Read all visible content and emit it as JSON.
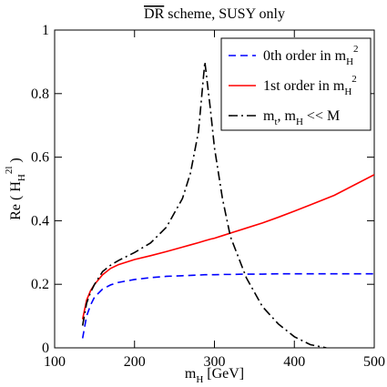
{
  "chart_data": {
    "type": "line",
    "title": [
      {
        "text": "DR",
        "overline": true
      },
      {
        "text": " scheme,  SUSY only"
      }
    ],
    "x_label": [
      {
        "text": "m"
      },
      {
        "sub": "H"
      },
      {
        "text": "  [GeV]"
      }
    ],
    "y_label": [
      {
        "text": "Re ( H"
      },
      {
        "sub": "H"
      },
      {
        "sup": "2l"
      },
      {
        "text": " )"
      }
    ],
    "xlim": [
      100,
      500
    ],
    "ylim": [
      0,
      1
    ],
    "xticks": [
      100,
      200,
      300,
      400,
      500
    ],
    "yticks": [
      0,
      0.2,
      0.4,
      0.6,
      0.8,
      1
    ],
    "legend": "upper right",
    "x": [
      135,
      140,
      145,
      150,
      160,
      170,
      180,
      200,
      220,
      240,
      260,
      270,
      280,
      288,
      295,
      300,
      310,
      320,
      340,
      360,
      380,
      400,
      420,
      440,
      450,
      500
    ],
    "series": [
      {
        "name": [
          {
            "text": "0th order in m"
          },
          {
            "sub": "H"
          },
          {
            "sup": "2"
          }
        ],
        "color": "#0000ff",
        "dash": "dashed",
        "values": [
          0.03,
          0.1,
          0.135,
          0.16,
          0.185,
          0.198,
          0.206,
          0.215,
          0.221,
          0.225,
          0.227,
          0.228,
          0.229,
          0.23,
          0.23,
          0.23,
          0.231,
          0.231,
          0.232,
          0.232,
          0.233,
          0.233,
          0.233,
          0.233,
          0.233,
          0.233
        ]
      },
      {
        "name": [
          {
            "text": "1st order in m"
          },
          {
            "sub": "H"
          },
          {
            "sup": "2"
          }
        ],
        "color": "#ff0000",
        "dash": "solid",
        "values": [
          0.09,
          0.15,
          0.18,
          0.2,
          0.23,
          0.25,
          0.262,
          0.278,
          0.29,
          0.303,
          0.317,
          0.324,
          0.331,
          0.337,
          0.342,
          0.345,
          0.353,
          0.361,
          0.377,
          0.393,
          0.411,
          0.43,
          0.45,
          0.47,
          0.48,
          0.545
        ]
      },
      {
        "name": [
          {
            "text": "m"
          },
          {
            "sub": "t"
          },
          {
            "text": ", m"
          },
          {
            "sub": "H"
          },
          {
            "text": "  <<  M"
          }
        ],
        "color": "#000000",
        "dash": "dashdot",
        "values": [
          0.07,
          0.14,
          0.175,
          0.2,
          0.24,
          0.26,
          0.275,
          0.3,
          0.33,
          0.38,
          0.47,
          0.55,
          0.68,
          0.9,
          0.75,
          0.63,
          0.47,
          0.35,
          0.22,
          0.13,
          0.075,
          0.035,
          0.01,
          0,
          null,
          null
        ]
      }
    ]
  }
}
